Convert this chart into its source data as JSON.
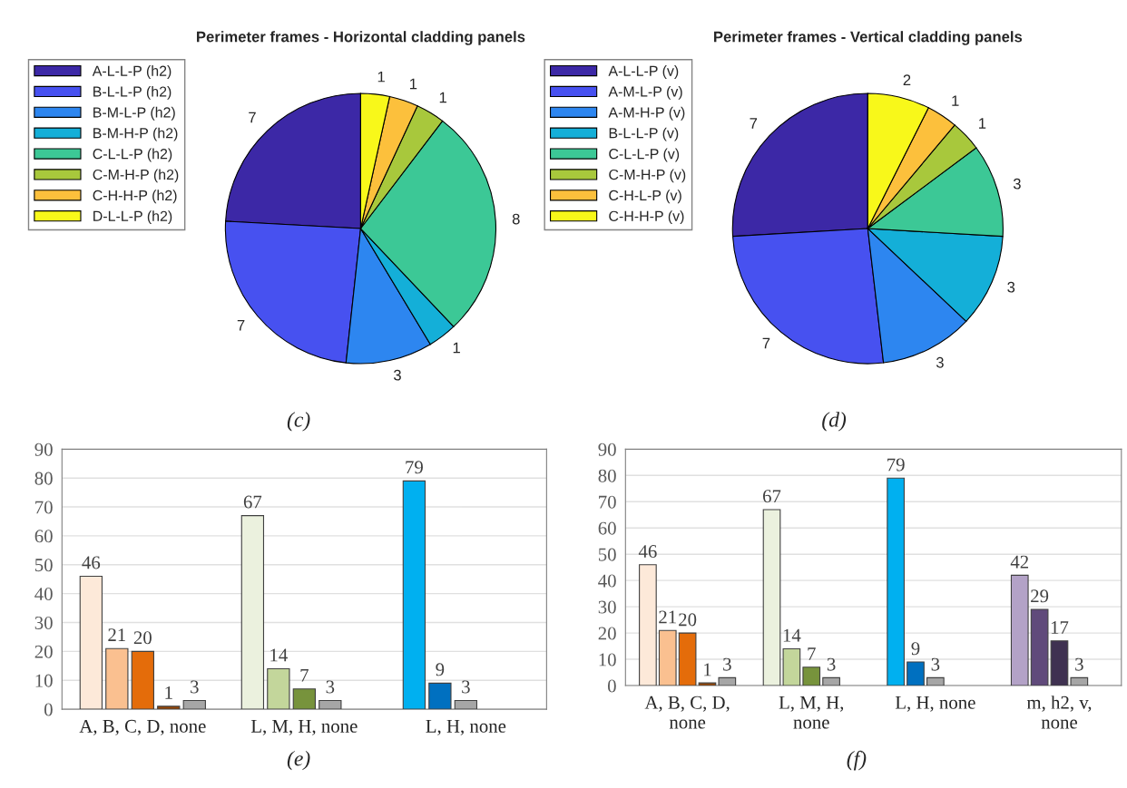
{
  "chart_data": [
    {
      "type": "pie",
      "title": "Perimeter frames - Horizontal cladding panels",
      "categories": [
        "A-L-L-P (h2)",
        "B-L-L-P (h2)",
        "B-M-L-P (h2)",
        "B-M-H-P (h2)",
        "C-L-L-P (h2)",
        "C-M-H-P (h2)",
        "C-H-H-P (h2)",
        "D-L-L-P (h2)"
      ],
      "values": [
        7,
        7,
        3,
        1,
        8,
        1,
        1,
        1
      ],
      "colors": [
        "#3c28a6",
        "#4751f0",
        "#2d86f0",
        "#14afd8",
        "#3cc896",
        "#a8c83c",
        "#fcc03c",
        "#f8f81a"
      ],
      "data_labels": true,
      "legend": "left",
      "annotations": [
        "(c)"
      ]
    },
    {
      "type": "pie",
      "title": "Perimeter frames - Vertical cladding panels",
      "categories": [
        "A-L-L-P (v)",
        "A-M-L-P (v)",
        "A-M-H-P (v)",
        "B-L-L-P (v)",
        "C-L-L-P (v)",
        "C-M-H-P (v)",
        "C-H-L-P (v)",
        "C-H-H-P (v)"
      ],
      "values": [
        7,
        7,
        3,
        3,
        3,
        1,
        1,
        2
      ],
      "colors": [
        "#3c28a6",
        "#4751f0",
        "#2d86f0",
        "#14afd8",
        "#3cc896",
        "#a8c83c",
        "#fcc03c",
        "#f8f81a"
      ],
      "data_labels": true,
      "legend": "left",
      "annotations": [
        "(d)"
      ]
    },
    {
      "type": "bar",
      "categories": [
        "A, B, C, D, none",
        "L, M, H, none",
        "L, H, none"
      ],
      "series": [
        {
          "values": [
            46,
            67,
            79
          ],
          "colors": [
            "#fde9d9",
            "#ebf1de",
            "#00b0f0"
          ]
        },
        {
          "values": [
            21,
            14,
            9
          ],
          "colors": [
            "#fac090",
            "#c3d69b",
            "#0070c0"
          ]
        },
        {
          "values": [
            20,
            7,
            3
          ],
          "colors": [
            "#e46c0a",
            "#77933c",
            "#a6a6a6"
          ]
        },
        {
          "values": [
            1,
            3,
            null
          ],
          "colors": [
            "#974706",
            "#a6a6a6",
            null
          ]
        },
        {
          "values": [
            3,
            null,
            null
          ],
          "colors": [
            "#a6a6a6",
            null,
            null
          ]
        }
      ],
      "ylim": [
        0,
        90
      ],
      "yticks": [
        0,
        10,
        20,
        30,
        40,
        50,
        60,
        70,
        80,
        90
      ],
      "data_labels": true,
      "grid": "y",
      "annotations": [
        "(e)"
      ]
    },
    {
      "type": "bar",
      "categories": [
        "A, B, C, D,\nnone",
        "L, M, H,\nnone",
        "L, H, none",
        "m, h2, v,\nnone"
      ],
      "series": [
        {
          "values": [
            46,
            67,
            79,
            42
          ],
          "colors": [
            "#fde9d9",
            "#ebf1de",
            "#00b0f0",
            "#b3a2c7"
          ]
        },
        {
          "values": [
            21,
            14,
            9,
            29
          ],
          "colors": [
            "#fac090",
            "#c3d69b",
            "#0070c0",
            "#604a7b"
          ]
        },
        {
          "values": [
            20,
            7,
            3,
            17
          ],
          "colors": [
            "#e46c0a",
            "#77933c",
            "#a6a6a6",
            "#3f3151"
          ]
        },
        {
          "values": [
            1,
            3,
            null,
            3
          ],
          "colors": [
            "#974706",
            "#a6a6a6",
            null,
            "#a6a6a6"
          ]
        },
        {
          "values": [
            3,
            null,
            null,
            null
          ],
          "colors": [
            "#a6a6a6",
            null,
            null,
            null
          ]
        }
      ],
      "ylim": [
        0,
        90
      ],
      "yticks": [
        0,
        10,
        20,
        30,
        40,
        50,
        60,
        70,
        80,
        90
      ],
      "data_labels": true,
      "grid": "y",
      "annotations": [
        "(f)"
      ]
    }
  ]
}
